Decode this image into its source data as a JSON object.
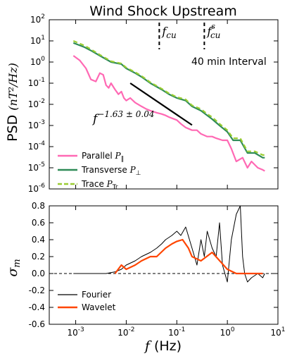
{
  "chart_data": [
    {
      "type": "line",
      "title": "Wind Shock Upstream",
      "ylabel": "PSD",
      "ylabel_unit": "(nT²/Hz)",
      "xscale": "log",
      "yscale": "log",
      "xlim": [
        0.0003,
        10
      ],
      "ylim": [
        1e-06,
        100
      ],
      "yticks": [
        100,
        10,
        1,
        0.1,
        0.01,
        0.001,
        0.0001,
        1e-05,
        1e-06
      ],
      "ytick_labels": [
        {
          "base": "10",
          "exp": "2"
        },
        {
          "base": "10",
          "exp": "1"
        },
        {
          "base": "10",
          "exp": "0"
        },
        {
          "base": "10",
          "exp": "-1"
        },
        {
          "base": "10",
          "exp": "-2"
        },
        {
          "base": "10",
          "exp": "-3"
        },
        {
          "base": "10",
          "exp": "-4"
        },
        {
          "base": "10",
          "exp": "-5"
        },
        {
          "base": "10",
          "exp": "-6"
        }
      ],
      "annotations": {
        "interval": "40 min Interval",
        "fit_label": "f",
        "fit_exponent": "−1.63 ± 0.04",
        "fcu_label": "f",
        "fcu_sub": "cu",
        "fcus_sup": "s",
        "fcu_freq": 0.045,
        "fcus_freq": 0.35,
        "fit_line": {
          "x": [
            0.012,
            0.2
          ],
          "y": [
            0.1,
            0.00105
          ]
        }
      },
      "legend": {
        "position": "lower-left",
        "entries": [
          {
            "text": "Parallel",
            "symbol": "P",
            "sub": "∥",
            "color": "#ff69b4",
            "style": "solid"
          },
          {
            "text": "Transverse",
            "symbol": "P",
            "sub": "⊥",
            "color": "#2e8b57",
            "style": "solid"
          },
          {
            "text": "Trace",
            "symbol": "P",
            "sub": "Tr",
            "color": "#9acd32",
            "style": "dashed"
          }
        ]
      },
      "series": [
        {
          "name": "Parallel",
          "color": "#ff69b4",
          "x": [
            0.0009,
            0.0012,
            0.0016,
            0.002,
            0.0025,
            0.003,
            0.0035,
            0.004,
            0.0045,
            0.005,
            0.006,
            0.007,
            0.008,
            0.009,
            0.01,
            0.012,
            0.015,
            0.02,
            0.025,
            0.03,
            0.04,
            0.05,
            0.06,
            0.07,
            0.08,
            0.1,
            0.12,
            0.15,
            0.2,
            0.25,
            0.3,
            0.4,
            0.5,
            0.6,
            0.8,
            1.0,
            1.2,
            1.5,
            2.0,
            2.5,
            3.0,
            4.0,
            5.0,
            5.5
          ],
          "y": [
            2.0,
            1.2,
            0.5,
            0.15,
            0.12,
            0.3,
            0.25,
            0.08,
            0.06,
            0.1,
            0.05,
            0.03,
            0.04,
            0.02,
            0.015,
            0.02,
            0.012,
            0.008,
            0.006,
            0.005,
            0.004,
            0.0035,
            0.003,
            0.0025,
            0.0022,
            0.0018,
            0.0012,
            0.0008,
            0.0006,
            0.0006,
            0.0004,
            0.0003,
            0.0003,
            0.00025,
            0.0002,
            0.0002,
            8e-05,
            2e-05,
            3e-05,
            1e-05,
            2e-05,
            1e-05,
            8e-06,
            7e-06
          ]
        },
        {
          "name": "Transverse",
          "color": "#2e8b57",
          "x": [
            0.0009,
            0.0015,
            0.002,
            0.003,
            0.005,
            0.008,
            0.01,
            0.015,
            0.02,
            0.03,
            0.05,
            0.07,
            0.1,
            0.15,
            0.2,
            0.3,
            0.4,
            0.5,
            0.7,
            1.0,
            1.3,
            1.8,
            2.5,
            3.5,
            5.0,
            5.5
          ],
          "y": [
            8.0,
            5.0,
            3.5,
            2.0,
            1.0,
            0.8,
            0.5,
            0.3,
            0.2,
            0.1,
            0.05,
            0.03,
            0.02,
            0.015,
            0.008,
            0.005,
            0.003,
            0.002,
            0.001,
            0.0005,
            0.0002,
            0.0002,
            5e-05,
            5e-05,
            3e-05,
            3e-05
          ]
        },
        {
          "name": "Trace",
          "color": "#9acd32",
          "dashed": true,
          "x": [
            0.0009,
            0.0015,
            0.002,
            0.003,
            0.005,
            0.008,
            0.01,
            0.015,
            0.02,
            0.03,
            0.05,
            0.07,
            0.1,
            0.15,
            0.2,
            0.3,
            0.4,
            0.5,
            0.7,
            1.0,
            1.3,
            1.8,
            2.5,
            3.5,
            5.0,
            5.5
          ],
          "y": [
            10.0,
            6.0,
            4.0,
            2.2,
            1.1,
            0.85,
            0.55,
            0.33,
            0.22,
            0.11,
            0.055,
            0.033,
            0.022,
            0.017,
            0.009,
            0.006,
            0.0035,
            0.0025,
            0.0012,
            0.0006,
            0.00025,
            0.00025,
            6e-05,
            6e-05,
            4e-05,
            4e-05
          ]
        }
      ]
    },
    {
      "type": "line",
      "ylabel": "σ",
      "ylabel_sub": "m",
      "xlabel": "f",
      "xlabel_unit": "(Hz)",
      "xscale": "log",
      "xlim": [
        0.0003,
        10
      ],
      "ylim": [
        -0.6,
        0.8
      ],
      "yticks": [
        0.8,
        0.6,
        0.4,
        0.2,
        0.0,
        -0.2,
        -0.4,
        -0.6
      ],
      "ytick_labels": [
        "0.8",
        "0.6",
        "0.4",
        "0.2",
        "0.0",
        "-0.2",
        "-0.4",
        "-0.6"
      ],
      "xticks": [
        0.001,
        0.01,
        0.1,
        1,
        10
      ],
      "xtick_labels": [
        {
          "base": "10",
          "exp": "-3"
        },
        {
          "base": "10",
          "exp": "-2"
        },
        {
          "base": "10",
          "exp": "-1"
        },
        {
          "base": "10",
          "exp": "0"
        },
        {
          "base": "10",
          "exp": "1"
        }
      ],
      "reference_line": 0.0,
      "legend": {
        "position": "lower-left",
        "entries": [
          {
            "text": "Fourier",
            "color": "#000000"
          },
          {
            "text": "Wavelet",
            "color": "#ff4500"
          }
        ]
      },
      "series": [
        {
          "name": "Fourier",
          "color": "#000000",
          "x": [
            0.0009,
            0.002,
            0.004,
            0.006,
            0.008,
            0.01,
            0.015,
            0.02,
            0.03,
            0.04,
            0.05,
            0.06,
            0.08,
            0.1,
            0.12,
            0.15,
            0.2,
            0.25,
            0.3,
            0.35,
            0.4,
            0.5,
            0.6,
            0.7,
            0.8,
            1.0,
            1.2,
            1.5,
            1.8,
            2.0,
            2.2,
            2.5,
            3.0,
            4.0,
            5.0,
            5.5
          ],
          "y": [
            0.0,
            0.0,
            0.0,
            0.02,
            0.05,
            0.1,
            0.15,
            0.2,
            0.25,
            0.3,
            0.35,
            0.4,
            0.45,
            0.5,
            0.45,
            0.55,
            0.3,
            0.1,
            0.4,
            0.2,
            0.5,
            0.3,
            0.2,
            0.6,
            0.1,
            -0.1,
            0.4,
            0.7,
            0.8,
            0.2,
            0.0,
            -0.1,
            -0.05,
            0.0,
            -0.05,
            0.0
          ]
        },
        {
          "name": "Wavelet",
          "color": "#ff4500",
          "x": [
            0.006,
            0.008,
            0.01,
            0.015,
            0.02,
            0.03,
            0.04,
            0.06,
            0.08,
            0.1,
            0.13,
            0.17,
            0.2,
            0.3,
            0.5,
            1.0,
            1.5,
            2.0,
            3.0,
            5.0
          ],
          "y": [
            0.0,
            0.1,
            0.05,
            0.1,
            0.15,
            0.2,
            0.2,
            0.3,
            0.35,
            0.38,
            0.4,
            0.3,
            0.2,
            0.15,
            0.25,
            0.05,
            0.0,
            0.0,
            0.0,
            0.0
          ]
        }
      ]
    }
  ]
}
